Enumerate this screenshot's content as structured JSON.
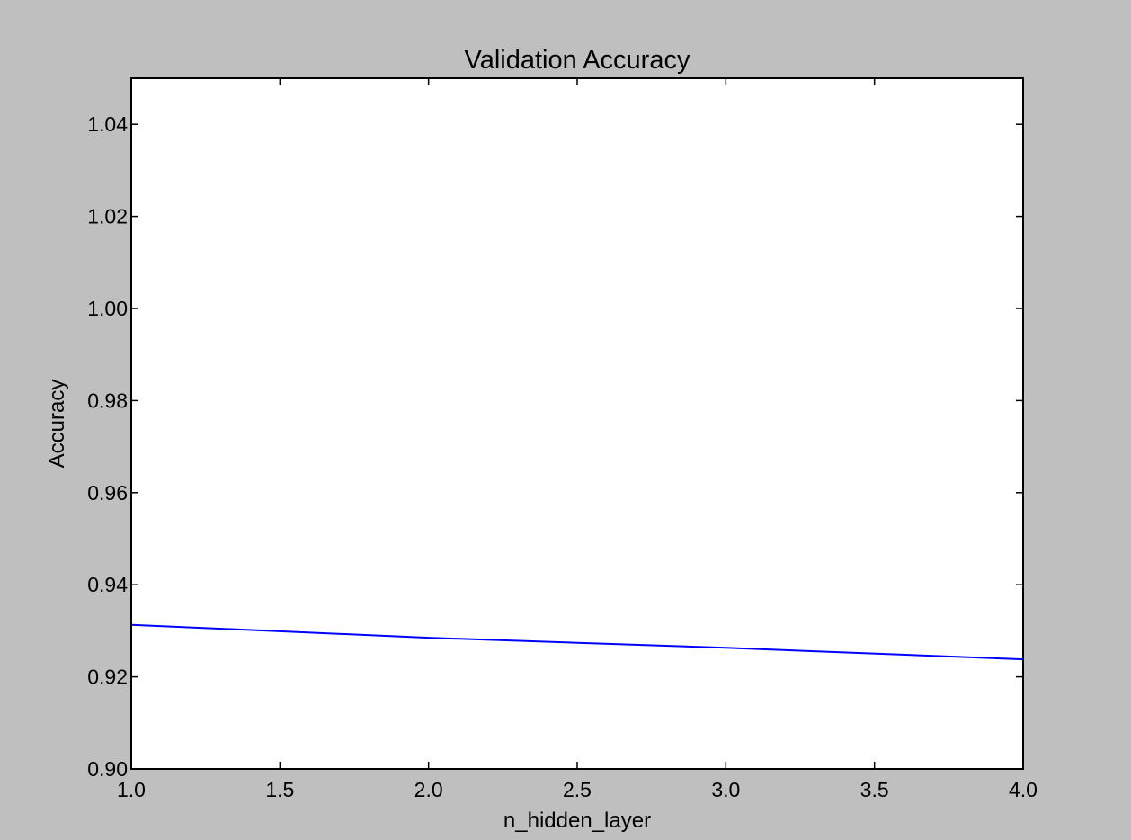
{
  "chart_data": {
    "type": "line",
    "title": "Validation Accuracy",
    "xlabel": "n_hidden_layer",
    "ylabel": "Accuracy",
    "xlim": [
      1.0,
      4.0
    ],
    "ylim": [
      0.9,
      1.05
    ],
    "x_ticks": [
      "1.0",
      "1.5",
      "2.0",
      "2.5",
      "3.0",
      "3.5",
      "4.0"
    ],
    "y_ticks": [
      "0.90",
      "0.92",
      "0.94",
      "0.96",
      "0.98",
      "1.00",
      "1.02",
      "1.04"
    ],
    "x_tick_values": [
      1.0,
      1.5,
      2.0,
      2.5,
      3.0,
      3.5,
      4.0
    ],
    "y_tick_values": [
      0.9,
      0.92,
      0.94,
      0.96,
      0.98,
      1.0,
      1.02,
      1.04
    ],
    "grid": false,
    "series": [
      {
        "x": [
          1,
          2,
          3,
          4
        ],
        "y": [
          0.9313,
          0.9285,
          0.9263,
          0.9238
        ],
        "color": "#0000ff"
      }
    ]
  }
}
